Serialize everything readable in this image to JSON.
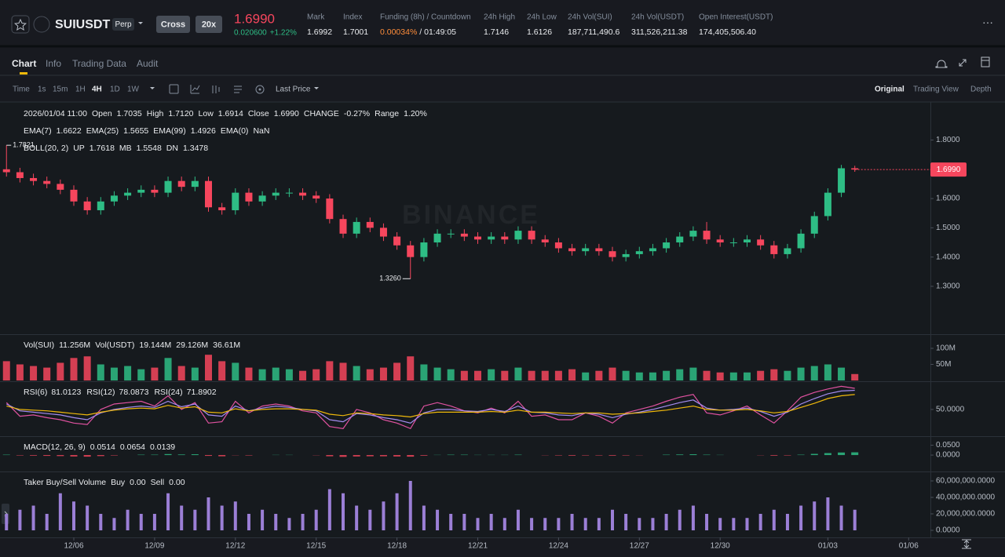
{
  "header": {
    "symbol": "SUIUSDT",
    "contract": "Perp",
    "margin_mode": "Cross",
    "leverage": "20x",
    "last_price": "1.6990",
    "change": "0.020600",
    "change_pct": "+1.22%",
    "stats": [
      {
        "label": "Mark",
        "value": "1.6992"
      },
      {
        "label": "Index",
        "value": "1.7001"
      },
      {
        "label": "Funding (8h) / Countdown",
        "value": "0.00034%",
        "extra": "/ 01:49:05"
      },
      {
        "label": "24h High",
        "value": "1.7146"
      },
      {
        "label": "24h Low",
        "value": "1.6126"
      },
      {
        "label": "24h Vol(SUI)",
        "value": "187,711,490.6"
      },
      {
        "label": "24h Vol(USDT)",
        "value": "311,526,211.38"
      },
      {
        "label": "Open Interest(USDT)",
        "value": "174,405,506.40"
      }
    ]
  },
  "tabs": [
    "Chart",
    "Info",
    "Trading Data",
    "Audit"
  ],
  "toolbar": {
    "intervals": [
      "Time",
      "1s",
      "15m",
      "1H",
      "4H",
      "1D",
      "1W"
    ],
    "price_type": "Last Price",
    "views": [
      "Original",
      "Trading View",
      "Depth"
    ]
  },
  "chart_data": [
    {
      "type": "candlestick",
      "watermark": "BINANCE",
      "up_color": "#2ebd85",
      "down_color": "#f6465d",
      "legends": [
        [
          {
            "text": "2026/01/04 11:00",
            "color": "#b7bdc6"
          },
          {
            "text": "Open",
            "color": "#848e9c"
          },
          {
            "text": "1.7035",
            "color": "#f6465d"
          },
          {
            "text": "High",
            "color": "#848e9c"
          },
          {
            "text": "1.7120",
            "color": "#f6465d"
          },
          {
            "text": "Low",
            "color": "#848e9c"
          },
          {
            "text": "1.6914",
            "color": "#f6465d"
          },
          {
            "text": "Close",
            "color": "#848e9c"
          },
          {
            "text": "1.6990",
            "color": "#f6465d"
          },
          {
            "text": "CHANGE",
            "color": "#848e9c"
          },
          {
            "text": "-0.27%",
            "color": "#f6465d"
          },
          {
            "text": "Range",
            "color": "#848e9c"
          },
          {
            "text": "1.20%",
            "color": "#f6465d"
          }
        ],
        [
          {
            "text": "EMA(7)",
            "color": "#848e9c"
          },
          {
            "text": "1.6622",
            "color": "#f0b90b"
          },
          {
            "text": "EMA(25)",
            "color": "#848e9c"
          },
          {
            "text": "1.5655",
            "color": "#e052a0"
          },
          {
            "text": "EMA(99)",
            "color": "#848e9c"
          },
          {
            "text": "1.4926",
            "color": "#a48cf0"
          },
          {
            "text": "EMA(0)",
            "color": "#848e9c"
          },
          {
            "text": "NaN",
            "color": "#f6465d"
          }
        ],
        [
          {
            "text": "BOLL(20, 2)",
            "color": "#848e9c"
          },
          {
            "text": "UP",
            "color": "#848e9c"
          },
          {
            "text": "1.7618",
            "color": "#a48cf0"
          },
          {
            "text": "MB",
            "color": "#848e9c"
          },
          {
            "text": "1.5548",
            "color": "#e052a0"
          },
          {
            "text": "DN",
            "color": "#848e9c"
          },
          {
            "text": "1.3478",
            "color": "#a48cf0"
          }
        ]
      ],
      "markers": {
        "high": "1.7821",
        "low": "1.3260",
        "last": "1.6990"
      },
      "open": [
        1.7,
        1.69,
        1.67,
        1.66,
        1.65,
        1.63,
        1.59,
        1.56,
        1.59,
        1.61,
        1.62,
        1.63,
        1.62,
        1.66,
        1.64,
        1.66,
        1.57,
        1.56,
        1.62,
        1.59,
        1.61,
        1.62,
        1.62,
        1.61,
        1.6,
        1.53,
        1.48,
        1.52,
        1.5,
        1.47,
        1.44,
        1.4,
        1.45,
        1.48,
        1.48,
        1.47,
        1.46,
        1.47,
        1.46,
        1.49,
        1.46,
        1.45,
        1.43,
        1.42,
        1.43,
        1.42,
        1.4,
        1.41,
        1.42,
        1.43,
        1.45,
        1.47,
        1.49,
        1.46,
        1.45,
        1.45,
        1.46,
        1.44,
        1.41,
        1.43,
        1.48,
        1.54,
        1.62,
        1.7035,
        null,
        null,
        null,
        null
      ],
      "high": [
        1.7821,
        1.705,
        1.685,
        1.675,
        1.665,
        1.645,
        1.605,
        1.605,
        1.625,
        1.635,
        1.645,
        1.645,
        1.675,
        1.675,
        1.675,
        1.675,
        1.585,
        1.635,
        1.635,
        1.625,
        1.635,
        1.635,
        1.635,
        1.625,
        1.615,
        1.545,
        1.535,
        1.535,
        1.515,
        1.485,
        1.455,
        1.465,
        1.495,
        1.495,
        1.495,
        1.485,
        1.485,
        1.485,
        1.505,
        1.505,
        1.475,
        1.465,
        1.445,
        1.445,
        1.445,
        1.435,
        1.425,
        1.435,
        1.445,
        1.465,
        1.485,
        1.505,
        1.52,
        1.475,
        1.465,
        1.475,
        1.475,
        1.455,
        1.445,
        1.495,
        1.555,
        1.635,
        1.715,
        1.712,
        null,
        null,
        null,
        null
      ],
      "low": [
        1.675,
        1.655,
        1.645,
        1.635,
        1.615,
        1.575,
        1.545,
        1.545,
        1.575,
        1.595,
        1.605,
        1.605,
        1.605,
        1.625,
        1.625,
        1.555,
        1.545,
        1.545,
        1.575,
        1.575,
        1.595,
        1.605,
        1.595,
        1.585,
        1.515,
        1.465,
        1.465,
        1.485,
        1.455,
        1.425,
        1.326,
        1.385,
        1.435,
        1.465,
        1.455,
        1.445,
        1.445,
        1.445,
        1.445,
        1.445,
        1.435,
        1.415,
        1.405,
        1.405,
        1.405,
        1.385,
        1.385,
        1.395,
        1.405,
        1.415,
        1.435,
        1.455,
        1.445,
        1.435,
        1.435,
        1.435,
        1.425,
        1.395,
        1.395,
        1.415,
        1.465,
        1.525,
        1.605,
        1.6914,
        null,
        null,
        null,
        null
      ],
      "close": [
        1.69,
        1.67,
        1.66,
        1.65,
        1.63,
        1.59,
        1.56,
        1.59,
        1.61,
        1.62,
        1.63,
        1.62,
        1.66,
        1.64,
        1.66,
        1.57,
        1.56,
        1.62,
        1.59,
        1.61,
        1.62,
        1.62,
        1.61,
        1.6,
        1.53,
        1.48,
        1.52,
        1.5,
        1.47,
        1.44,
        1.4,
        1.45,
        1.48,
        1.48,
        1.47,
        1.46,
        1.47,
        1.46,
        1.49,
        1.46,
        1.45,
        1.43,
        1.42,
        1.43,
        1.42,
        1.4,
        1.41,
        1.42,
        1.43,
        1.45,
        1.47,
        1.49,
        1.46,
        1.45,
        1.45,
        1.46,
        1.44,
        1.41,
        1.43,
        1.48,
        1.54,
        1.62,
        1.7035,
        1.699,
        null,
        null,
        null,
        null
      ],
      "ylim": [
        1.139,
        1.93
      ],
      "yticks": [
        {
          "value": 1.3,
          "label": "1.3000"
        },
        {
          "value": 1.4,
          "label": "1.4000"
        },
        {
          "value": 1.5,
          "label": "1.5000"
        },
        {
          "value": 1.6,
          "label": "1.6000"
        },
        {
          "value": 1.8,
          "label": "1.8000"
        }
      ]
    },
    {
      "type": "bar",
      "legends": [
        [
          {
            "text": "Vol(SUI)",
            "color": "#848e9c"
          },
          {
            "text": "11.256M",
            "color": "#eaecef"
          },
          {
            "text": "Vol(USDT)",
            "color": "#848e9c"
          },
          {
            "text": "19.144M",
            "color": "#eaecef"
          },
          {
            "text": "29.126M",
            "color": "#5ac8e0"
          },
          {
            "text": "36.61M",
            "color": "#e052a0"
          }
        ]
      ],
      "values": [
        60,
        50,
        45,
        40,
        55,
        70,
        75,
        50,
        40,
        45,
        35,
        40,
        70,
        45,
        40,
        80,
        60,
        55,
        40,
        35,
        40,
        35,
        30,
        35,
        60,
        55,
        45,
        35,
        40,
        55,
        75,
        50,
        40,
        35,
        30,
        30,
        35,
        30,
        40,
        30,
        30,
        30,
        35,
        25,
        30,
        40,
        30,
        25,
        25,
        30,
        35,
        40,
        30,
        25,
        25,
        25,
        30,
        35,
        30,
        40,
        45,
        50,
        40,
        20,
        null,
        null,
        null,
        null
      ],
      "ylim": [
        0,
        139
      ],
      "yticks": [
        {
          "value": 50,
          "label": "50M"
        },
        {
          "value": 100,
          "label": "100M"
        }
      ]
    },
    {
      "type": "line",
      "series": [
        {
          "name": "RSI(6)",
          "legend_value": "81.0123",
          "color": "#e052a0",
          "values": [
            60,
            40,
            42,
            38,
            35,
            30,
            28,
            50,
            58,
            60,
            62,
            55,
            70,
            50,
            60,
            30,
            32,
            62,
            45,
            55,
            58,
            55,
            48,
            45,
            25,
            22,
            50,
            45,
            35,
            30,
            22,
            55,
            60,
            55,
            48,
            45,
            52,
            45,
            62,
            40,
            42,
            35,
            35,
            45,
            40,
            30,
            45,
            50,
            55,
            62,
            68,
            72,
            45,
            42,
            48,
            55,
            42,
            30,
            48,
            68,
            75,
            80,
            84,
            81.0123,
            null,
            null,
            null,
            null
          ]
        },
        {
          "name": "RSI(12)",
          "legend_value": "78.0873",
          "color": "#a48cf0",
          "values": [
            58,
            48,
            46,
            44,
            42,
            38,
            35,
            45,
            50,
            53,
            55,
            53,
            62,
            54,
            58,
            42,
            40,
            55,
            48,
            52,
            55,
            53,
            50,
            48,
            35,
            32,
            44,
            42,
            38,
            35,
            30,
            45,
            50,
            50,
            48,
            47,
            50,
            47,
            55,
            46,
            45,
            42,
            41,
            45,
            43,
            38,
            43,
            46,
            50,
            55,
            60,
            64,
            52,
            49,
            50,
            52,
            47,
            40,
            46,
            58,
            66,
            73,
            77,
            78.0873,
            null,
            null,
            null,
            null
          ]
        },
        {
          "name": "RSI(24)",
          "legend_value": "71.8902",
          "color": "#f0b90b",
          "values": [
            55,
            50,
            49,
            48,
            46,
            44,
            42,
            46,
            49,
            51,
            52,
            51,
            56,
            52,
            54,
            46,
            45,
            51,
            48,
            50,
            51,
            51,
            50,
            49,
            43,
            41,
            45,
            44,
            42,
            41,
            39,
            44,
            46,
            46,
            46,
            46,
            47,
            46,
            49,
            46,
            46,
            45,
            44,
            45,
            45,
            43,
            44,
            45,
            47,
            49,
            52,
            55,
            50,
            49,
            49,
            50,
            48,
            45,
            47,
            53,
            59,
            66,
            70,
            71.8902,
            null,
            null,
            null,
            null
          ]
        }
      ],
      "ylim": [
        12,
        89
      ],
      "yticks": [
        {
          "value": 50,
          "label": "50.0000"
        }
      ]
    },
    {
      "type": "bar",
      "up_color": "#2ebd85",
      "down_color": "#f6465d",
      "legends": [
        [
          {
            "text": "MACD(12, 26, 9)",
            "color": "#848e9c"
          },
          {
            "text": "0.0514",
            "color": "#e052a0"
          },
          {
            "text": "0.0654",
            "color": "#eaecef"
          },
          {
            "text": "0.0139",
            "color": "#2ebd85"
          }
        ]
      ],
      "values": [
        0.002,
        -0.002,
        -0.003,
        -0.004,
        -0.005,
        -0.007,
        -0.008,
        -0.005,
        -0.002,
        0,
        0.002,
        0.002,
        0.005,
        0.003,
        0.004,
        -0.004,
        -0.006,
        -0.001,
        -0.002,
        0,
        0.001,
        0.001,
        0,
        -0.001,
        -0.006,
        -0.009,
        -0.007,
        -0.006,
        -0.006,
        -0.007,
        -0.008,
        -0.003,
        0.001,
        0.002,
        0.002,
        0.001,
        0.001,
        0.001,
        0.002,
        0,
        -0.001,
        -0.002,
        -0.003,
        -0.002,
        -0.002,
        -0.003,
        -0.002,
        -0.001,
        0,
        0.002,
        0.003,
        0.004,
        0.002,
        0.001,
        0,
        0,
        -0.001,
        -0.003,
        -0.002,
        0.002,
        0.006,
        0.01,
        0.013,
        0.0139,
        null,
        null,
        null,
        null
      ],
      "ylim": [
        -0.079,
        0.0875
      ],
      "yticks": [
        {
          "value": 0,
          "label": "0.0000"
        },
        {
          "value": 0.05,
          "label": "0.0500"
        }
      ]
    },
    {
      "type": "bar",
      "color": "#9b7fd6",
      "legends": [
        [
          {
            "text": "Taker Buy/Sell Volume",
            "color": "#848e9c"
          },
          {
            "text": "Buy",
            "color": "#848e9c"
          },
          {
            "text": "0.00",
            "color": "#3d7bf7"
          },
          {
            "text": "Sell",
            "color": "#848e9c"
          },
          {
            "text": "0.00",
            "color": "#f0b90b"
          }
        ]
      ],
      "categories": [
        null,
        null,
        null,
        null,
        null,
        "12/06",
        null,
        null,
        null,
        null,
        null,
        "12/09",
        null,
        null,
        null,
        null,
        null,
        "12/12",
        null,
        null,
        null,
        null,
        null,
        "12/15",
        null,
        null,
        null,
        null,
        null,
        "12/18",
        null,
        null,
        null,
        null,
        null,
        "12/21",
        null,
        null,
        null,
        null,
        null,
        "12/24",
        null,
        null,
        null,
        null,
        null,
        "12/27",
        null,
        null,
        null,
        null,
        null,
        "12/30",
        null,
        null,
        null,
        null,
        null,
        null,
        null,
        "01/03",
        null,
        null,
        null,
        null,
        null,
        "01/06"
      ],
      "values": [
        20000000,
        25000000,
        30000000,
        20000000,
        45000000,
        35000000,
        30000000,
        20000000,
        15000000,
        25000000,
        20000000,
        20000000,
        45000000,
        30000000,
        25000000,
        40000000,
        30000000,
        35000000,
        20000000,
        25000000,
        20000000,
        15000000,
        20000000,
        25000000,
        50000000,
        45000000,
        30000000,
        25000000,
        35000000,
        45000000,
        60000000,
        30000000,
        25000000,
        20000000,
        20000000,
        15000000,
        20000000,
        15000000,
        25000000,
        15000000,
        15000000,
        15000000,
        20000000,
        15000000,
        15000000,
        25000000,
        20000000,
        15000000,
        15000000,
        20000000,
        25000000,
        30000000,
        20000000,
        15000000,
        15000000,
        15000000,
        20000000,
        25000000,
        20000000,
        30000000,
        35000000,
        40000000,
        30000000,
        25000000,
        null,
        null,
        null,
        null
      ],
      "ylim": [
        -8570000,
        69520000
      ],
      "yticks": [
        {
          "value": 0,
          "label": "0.0000"
        },
        {
          "value": 20000000,
          "label": "20,000,000.0000"
        },
        {
          "value": 40000000,
          "label": "40,000,000.0000"
        },
        {
          "value": 60000000,
          "label": "60,000,000.0000"
        }
      ]
    }
  ]
}
